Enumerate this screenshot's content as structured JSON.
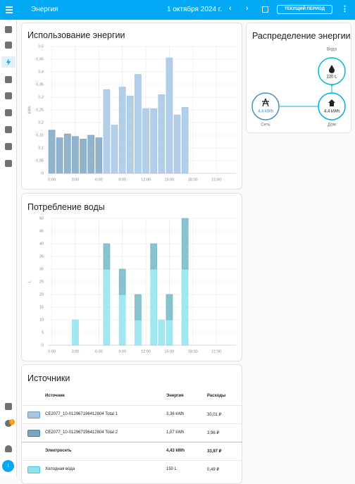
{
  "header": {
    "title": "Энергия",
    "date": "1 октября 2024 г.",
    "period_button": "ТЕКУЩИЙ ПЕРИОД"
  },
  "sidebar": {
    "badge": "1",
    "avatar": "I"
  },
  "chart_data": [
    {
      "type": "bar",
      "stacked": true,
      "title": "Использование энергии",
      "y_label": "kWh",
      "categories": [
        "0:00",
        null,
        null,
        "3:00",
        null,
        null,
        "6:00",
        null,
        null,
        "9:00",
        null,
        null,
        "12:00",
        null,
        null,
        "15:00",
        null,
        null,
        "18:00",
        null,
        null,
        "21:00",
        null,
        null
      ],
      "series": [
        {
          "color": "#a6c5e4",
          "values": [
            null,
            null,
            null,
            null,
            null,
            null,
            null,
            0.33,
            0.19,
            0.34,
            0.305,
            0.39,
            0.255,
            0.255,
            0.31,
            0.455,
            0.23,
            0.26,
            null,
            null,
            null,
            null,
            null,
            null
          ]
        },
        {
          "color": "#7ea6c2",
          "values": [
            0.17,
            0.14,
            0.155,
            0.145,
            0.135,
            0.15,
            0.14,
            null,
            null,
            null,
            null,
            null,
            null,
            null,
            null,
            null,
            null,
            null,
            null,
            null,
            null,
            null,
            null,
            null
          ]
        }
      ],
      "ylim": [
        0,
        0.5
      ],
      "yticks": [
        0,
        {
          "value": 0.05,
          "label": "0,05"
        },
        {
          "value": 0.1,
          "label": "0,1"
        },
        {
          "value": 0.15,
          "label": "0,15"
        },
        {
          "value": 0.2,
          "label": "0,2"
        },
        {
          "value": 0.25,
          "label": "0,25"
        },
        {
          "value": 0.3,
          "label": "0,3"
        },
        {
          "value": 0.35,
          "label": "0,35"
        },
        {
          "value": 0.4,
          "label": "0,4"
        },
        {
          "value": 0.45,
          "label": "0,45"
        },
        {
          "value": 0.5,
          "label": "0,5"
        }
      ],
      "grid": true
    },
    {
      "type": "bar",
      "stacked": true,
      "title": "Потребление воды",
      "y_label": "L",
      "categories": [
        "0:00",
        null,
        null,
        "3:00",
        null,
        null,
        "6:00",
        null,
        null,
        "9:00",
        null,
        null,
        "12:00",
        null,
        null,
        "15:00",
        null,
        null,
        "18:00",
        null,
        null,
        "21:00",
        null,
        null
      ],
      "series": [
        {
          "color": "#93e3ee",
          "values": [
            null,
            null,
            null,
            10,
            null,
            null,
            null,
            30,
            null,
            20,
            null,
            10,
            null,
            30,
            10,
            10,
            null,
            30,
            null,
            null,
            null,
            null,
            null,
            null
          ]
        },
        {
          "color": "#73b9c6",
          "values": [
            null,
            null,
            null,
            null,
            null,
            null,
            null,
            10,
            null,
            10,
            null,
            10,
            null,
            10,
            null,
            10,
            null,
            20,
            null,
            null,
            null,
            null,
            null,
            null
          ]
        }
      ],
      "ylim": [
        0,
        50
      ],
      "yticks": [
        0,
        5,
        10,
        15,
        20,
        25,
        30,
        35,
        40,
        45,
        50
      ],
      "grid": true
    }
  ],
  "distribution": {
    "title": "Распределение энергии",
    "water": {
      "label": "Вода",
      "value": "220 L"
    },
    "grid": {
      "label": "Сеть",
      "value": "4,4 kWh"
    },
    "home": {
      "label": "Дом",
      "value": "4,4 kWh"
    }
  },
  "sources": {
    "title": "Источники",
    "columns": [
      "Источник",
      "Энергия",
      "Расходы"
    ],
    "rows": [
      [
        "CE2077_10-012967196412804 Total 1",
        "3,36 kWh",
        "30,01 ₽"
      ],
      [
        "CE2077_10-012967196412804 Total 2",
        "1,07 kWh",
        "3,96 ₽"
      ],
      [
        "Электросеть",
        "4,43 kWh",
        "33,97 ₽"
      ],
      [
        "Холодная вода",
        "150 L",
        "0,49 ₽"
      ]
    ]
  }
}
